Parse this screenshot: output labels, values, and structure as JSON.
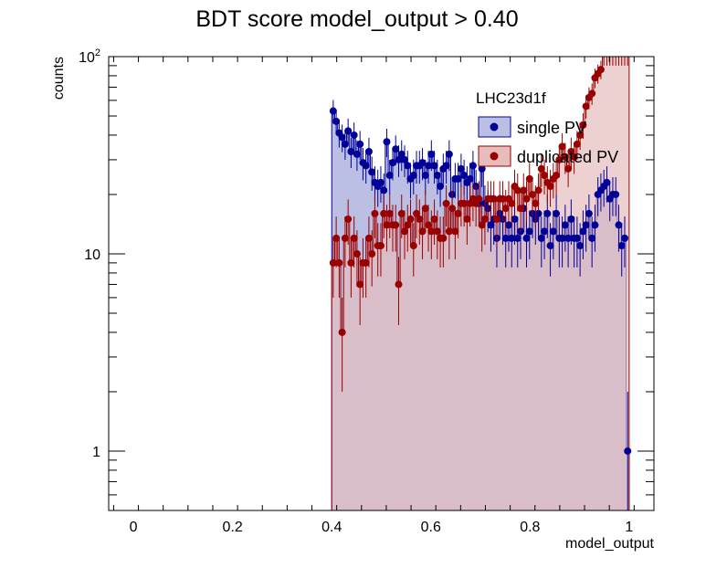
{
  "chart_data": {
    "type": "histogram",
    "title": "BDT score  model_output > 0.40",
    "xlabel": "model_output",
    "ylabel": "counts",
    "xlim": [
      -0.05,
      1.05
    ],
    "ylim": [
      0.5,
      100
    ],
    "yscale": "log",
    "grid": false,
    "x_ticks": [
      "0",
      "0.2",
      "0.4",
      "0.6",
      "0.8",
      "1"
    ],
    "y_ticks": [
      "1",
      "10",
      "10^2"
    ],
    "legend": {
      "title": "LHC23d1f",
      "placement": "top-right",
      "entries": [
        "single PV",
        "duplicated PV"
      ]
    },
    "bin_width": 0.006,
    "series": [
      {
        "name": "single PV",
        "color": "#000099",
        "fill": "#bbbfe3",
        "x": [
          0.403,
          0.409,
          0.415,
          0.421,
          0.427,
          0.433,
          0.439,
          0.445,
          0.451,
          0.457,
          0.463,
          0.469,
          0.475,
          0.481,
          0.487,
          0.493,
          0.499,
          0.505,
          0.511,
          0.517,
          0.523,
          0.529,
          0.535,
          0.541,
          0.547,
          0.553,
          0.559,
          0.565,
          0.571,
          0.577,
          0.583,
          0.589,
          0.595,
          0.601,
          0.607,
          0.613,
          0.619,
          0.625,
          0.631,
          0.637,
          0.643,
          0.649,
          0.655,
          0.661,
          0.667,
          0.673,
          0.679,
          0.685,
          0.691,
          0.697,
          0.703,
          0.709,
          0.715,
          0.721,
          0.727,
          0.733,
          0.739,
          0.745,
          0.751,
          0.757,
          0.763,
          0.769,
          0.775,
          0.781,
          0.787,
          0.793,
          0.799,
          0.805,
          0.811,
          0.817,
          0.823,
          0.829,
          0.835,
          0.841,
          0.847,
          0.853,
          0.859,
          0.865,
          0.871,
          0.877,
          0.883,
          0.889,
          0.895,
          0.901,
          0.907,
          0.913,
          0.919,
          0.925,
          0.931,
          0.937,
          0.943,
          0.949,
          0.955,
          0.961,
          0.967,
          0.973,
          0.979,
          0.985,
          0.991,
          0.997
        ],
        "values": [
          53,
          47,
          41,
          39,
          36,
          42,
          33,
          40,
          32,
          36,
          29,
          28,
          33,
          26,
          23,
          22,
          23,
          21,
          37,
          25,
          29,
          34,
          30,
          32,
          30,
          28,
          24,
          25,
          28,
          28,
          29,
          25,
          28,
          32,
          28,
          25,
          22,
          27,
          28,
          32,
          20,
          24,
          24,
          27,
          25,
          23,
          24,
          28,
          22,
          18,
          27,
          18,
          17,
          14,
          15,
          12,
          16,
          15,
          12,
          14,
          12,
          15,
          12,
          13,
          17,
          12,
          13,
          16,
          15,
          16,
          12,
          13,
          16,
          11,
          13,
          16,
          12,
          12,
          14,
          12,
          15,
          12,
          12,
          11,
          13,
          14,
          16,
          12,
          14,
          20,
          21,
          22,
          23,
          19,
          20,
          20,
          14,
          11,
          12,
          1
        ]
      },
      {
        "name": "duplicated PV",
        "color": "#990000",
        "fill": "#e6bcbc",
        "x": [
          0.403,
          0.409,
          0.415,
          0.421,
          0.427,
          0.433,
          0.439,
          0.445,
          0.451,
          0.457,
          0.463,
          0.469,
          0.475,
          0.481,
          0.487,
          0.493,
          0.499,
          0.505,
          0.511,
          0.517,
          0.523,
          0.529,
          0.535,
          0.541,
          0.547,
          0.553,
          0.559,
          0.565,
          0.571,
          0.577,
          0.583,
          0.589,
          0.595,
          0.601,
          0.607,
          0.613,
          0.619,
          0.625,
          0.631,
          0.637,
          0.643,
          0.649,
          0.655,
          0.661,
          0.667,
          0.673,
          0.679,
          0.685,
          0.691,
          0.697,
          0.703,
          0.709,
          0.715,
          0.721,
          0.727,
          0.733,
          0.739,
          0.745,
          0.751,
          0.757,
          0.763,
          0.769,
          0.775,
          0.781,
          0.787,
          0.793,
          0.799,
          0.805,
          0.811,
          0.817,
          0.823,
          0.829,
          0.835,
          0.841,
          0.847,
          0.853,
          0.859,
          0.865,
          0.871,
          0.877,
          0.883,
          0.889,
          0.895,
          0.901,
          0.907,
          0.913,
          0.919,
          0.925,
          0.931,
          0.937,
          0.943,
          0.949,
          0.955,
          0.961,
          0.967,
          0.973,
          0.979,
          0.985,
          0.991,
          0.997
        ],
        "values": [
          9,
          12,
          9,
          4,
          12,
          15,
          9,
          12,
          10,
          7,
          9,
          9,
          12,
          10,
          16,
          11,
          11,
          16,
          14,
          16,
          14,
          14,
          7,
          16,
          13,
          14,
          15,
          11,
          16,
          15,
          13,
          17,
          14,
          13,
          15,
          13,
          12,
          12,
          18,
          13,
          17,
          13,
          16,
          18,
          18,
          15,
          18,
          19,
          18,
          19,
          14,
          15,
          19,
          19,
          19,
          15,
          19,
          19,
          17,
          19,
          18,
          22,
          21,
          17,
          21,
          19,
          24,
          20,
          18,
          21,
          27,
          25,
          23,
          22,
          24,
          25,
          30,
          35,
          31,
          27,
          33,
          31,
          36,
          40,
          45,
          56,
          62,
          65,
          78,
          82,
          86,
          100,
          100,
          100,
          100,
          100,
          100,
          100,
          100,
          100
        ]
      }
    ]
  }
}
